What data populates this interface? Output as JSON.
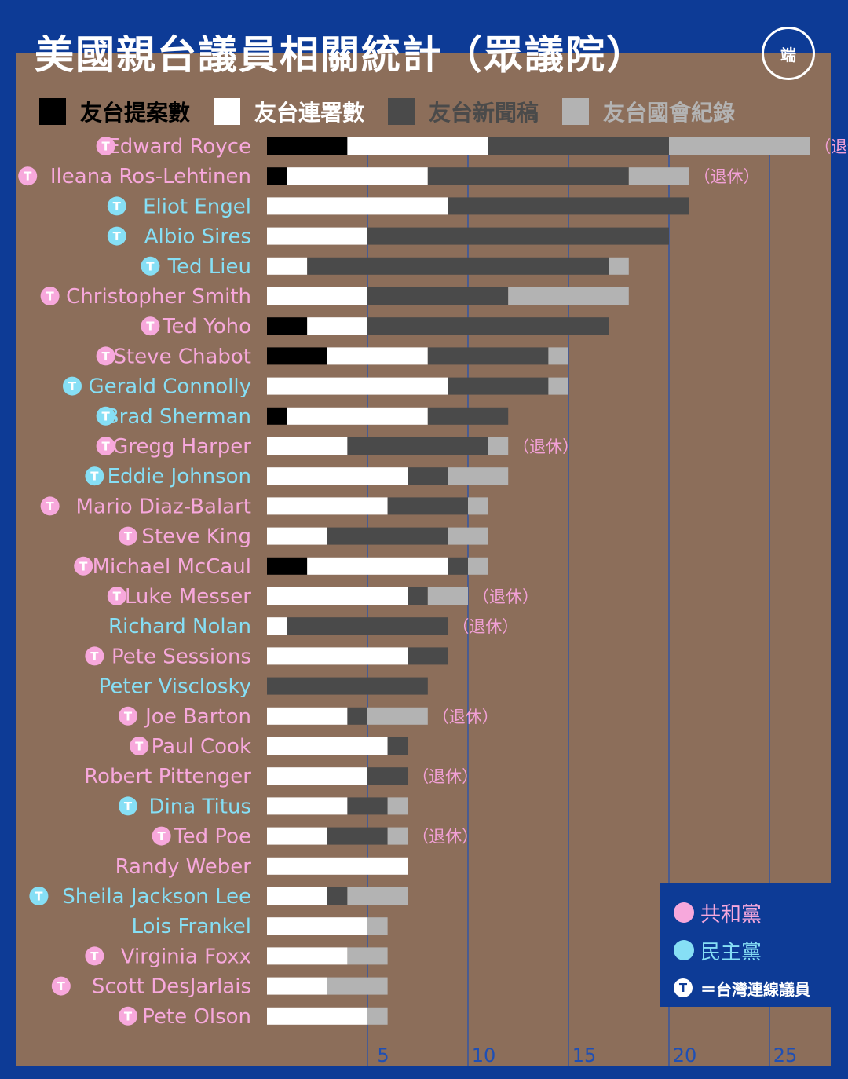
{
  "title": "美國親台議員相關統計（眾議院）",
  "logo_text": "端",
  "colors": {
    "background": "#0d3b96",
    "panel": "#8c6e5a",
    "republican": "#f7a8dc",
    "democrat": "#86dff5",
    "proposals": "#000000",
    "cosponsor": "#ffffff",
    "press": "#4a4a4a",
    "record": "#b3b3b3",
    "gridline": "#1e4fb5",
    "note": "#f2a0d6"
  },
  "legend": [
    {
      "label": "友台提案數",
      "color": "#000000",
      "text_color": "#000000"
    },
    {
      "label": "友台連署數",
      "color": "#ffffff",
      "text_color": "#ffffff"
    },
    {
      "label": "友台新聞稿",
      "color": "#4a4a4a",
      "text_color": "#4a4a4a"
    },
    {
      "label": "友台國會紀錄",
      "color": "#b3b3b3",
      "text_color": "#b3b3b3"
    }
  ],
  "party_legend": {
    "republican": "共和黨",
    "democrat": "民主黨",
    "caucus_badge": "T",
    "caucus": "＝台灣連線議員"
  },
  "chart_data": {
    "type": "bar",
    "orientation": "horizontal",
    "stacked": true,
    "series_names": [
      "友台提案數",
      "友台連署數",
      "友台新聞稿",
      "友台國會紀錄"
    ],
    "xlim": [
      0,
      28
    ],
    "xticks": [
      5,
      10,
      15,
      20,
      25
    ],
    "grid": true,
    "note_label": "（退休）",
    "rows": [
      {
        "name": "Edward Royce",
        "party": "R",
        "caucus": true,
        "retired": true,
        "values": [
          4,
          7,
          9,
          7
        ]
      },
      {
        "name": "Ileana Ros-Lehtinen",
        "party": "R",
        "caucus": true,
        "retired": true,
        "values": [
          1,
          7,
          10,
          3
        ]
      },
      {
        "name": "Eliot Engel",
        "party": "D",
        "caucus": true,
        "retired": false,
        "values": [
          0,
          9,
          12,
          0
        ]
      },
      {
        "name": "Albio Sires",
        "party": "D",
        "caucus": true,
        "retired": false,
        "values": [
          0,
          5,
          15,
          0
        ]
      },
      {
        "name": "Ted Lieu",
        "party": "D",
        "caucus": true,
        "retired": false,
        "values": [
          0,
          2,
          15,
          1
        ]
      },
      {
        "name": "Christopher Smith",
        "party": "R",
        "caucus": true,
        "retired": false,
        "values": [
          0,
          5,
          7,
          6
        ]
      },
      {
        "name": "Ted Yoho",
        "party": "R",
        "caucus": true,
        "retired": false,
        "values": [
          2,
          3,
          12,
          0
        ]
      },
      {
        "name": "Steve Chabot",
        "party": "R",
        "caucus": true,
        "retired": false,
        "values": [
          3,
          5,
          6,
          1
        ]
      },
      {
        "name": "Gerald Connolly",
        "party": "D",
        "caucus": true,
        "retired": false,
        "values": [
          0,
          9,
          5,
          1
        ]
      },
      {
        "name": "Brad Sherman",
        "party": "D",
        "caucus": true,
        "retired": false,
        "values": [
          1,
          7,
          4,
          0
        ]
      },
      {
        "name": "Gregg Harper",
        "party": "R",
        "caucus": true,
        "retired": true,
        "values": [
          0,
          4,
          7,
          1
        ]
      },
      {
        "name": "Eddie Johnson",
        "party": "D",
        "caucus": true,
        "retired": false,
        "values": [
          0,
          7,
          2,
          3
        ]
      },
      {
        "name": "Mario Diaz-Balart",
        "party": "R",
        "caucus": true,
        "retired": false,
        "values": [
          0,
          6,
          4,
          1
        ]
      },
      {
        "name": "Steve King",
        "party": "R",
        "caucus": true,
        "retired": false,
        "values": [
          0,
          3,
          6,
          2
        ]
      },
      {
        "name": "Michael McCaul",
        "party": "R",
        "caucus": true,
        "retired": false,
        "values": [
          2,
          7,
          1,
          1
        ]
      },
      {
        "name": "Luke Messer",
        "party": "R",
        "caucus": true,
        "retired": true,
        "values": [
          0,
          7,
          1,
          2
        ]
      },
      {
        "name": "Richard Nolan",
        "party": "D",
        "caucus": false,
        "retired": true,
        "values": [
          0,
          1,
          8,
          0
        ]
      },
      {
        "name": "Pete Sessions",
        "party": "R",
        "caucus": true,
        "retired": false,
        "values": [
          0,
          7,
          2,
          0
        ]
      },
      {
        "name": "Peter Visclosky",
        "party": "D",
        "caucus": false,
        "retired": false,
        "values": [
          0,
          0,
          8,
          0
        ]
      },
      {
        "name": "Joe Barton",
        "party": "R",
        "caucus": true,
        "retired": true,
        "values": [
          0,
          4,
          1,
          3
        ]
      },
      {
        "name": "Paul Cook",
        "party": "R",
        "caucus": true,
        "retired": false,
        "values": [
          0,
          6,
          1,
          0
        ]
      },
      {
        "name": "Robert Pittenger",
        "party": "R",
        "caucus": false,
        "retired": true,
        "values": [
          0,
          5,
          2,
          0
        ]
      },
      {
        "name": "Dina Titus",
        "party": "D",
        "caucus": true,
        "retired": false,
        "values": [
          0,
          4,
          2,
          1
        ]
      },
      {
        "name": "Ted Poe",
        "party": "R",
        "caucus": true,
        "retired": true,
        "values": [
          0,
          3,
          3,
          1
        ]
      },
      {
        "name": "Randy Weber",
        "party": "R",
        "caucus": false,
        "retired": false,
        "values": [
          0,
          7,
          0,
          0
        ]
      },
      {
        "name": "Sheila Jackson Lee",
        "party": "D",
        "caucus": true,
        "retired": false,
        "values": [
          0,
          3,
          1,
          3
        ]
      },
      {
        "name": "Lois Frankel",
        "party": "D",
        "caucus": false,
        "retired": false,
        "values": [
          0,
          5,
          0,
          1
        ]
      },
      {
        "name": "Virginia Foxx",
        "party": "R",
        "caucus": true,
        "retired": false,
        "values": [
          0,
          4,
          0,
          2
        ]
      },
      {
        "name": "Scott DesJarlais",
        "party": "R",
        "caucus": true,
        "retired": false,
        "values": [
          0,
          3,
          0,
          3
        ]
      },
      {
        "name": "Pete Olson",
        "party": "R",
        "caucus": true,
        "retired": false,
        "values": [
          0,
          5,
          0,
          1
        ]
      }
    ]
  }
}
